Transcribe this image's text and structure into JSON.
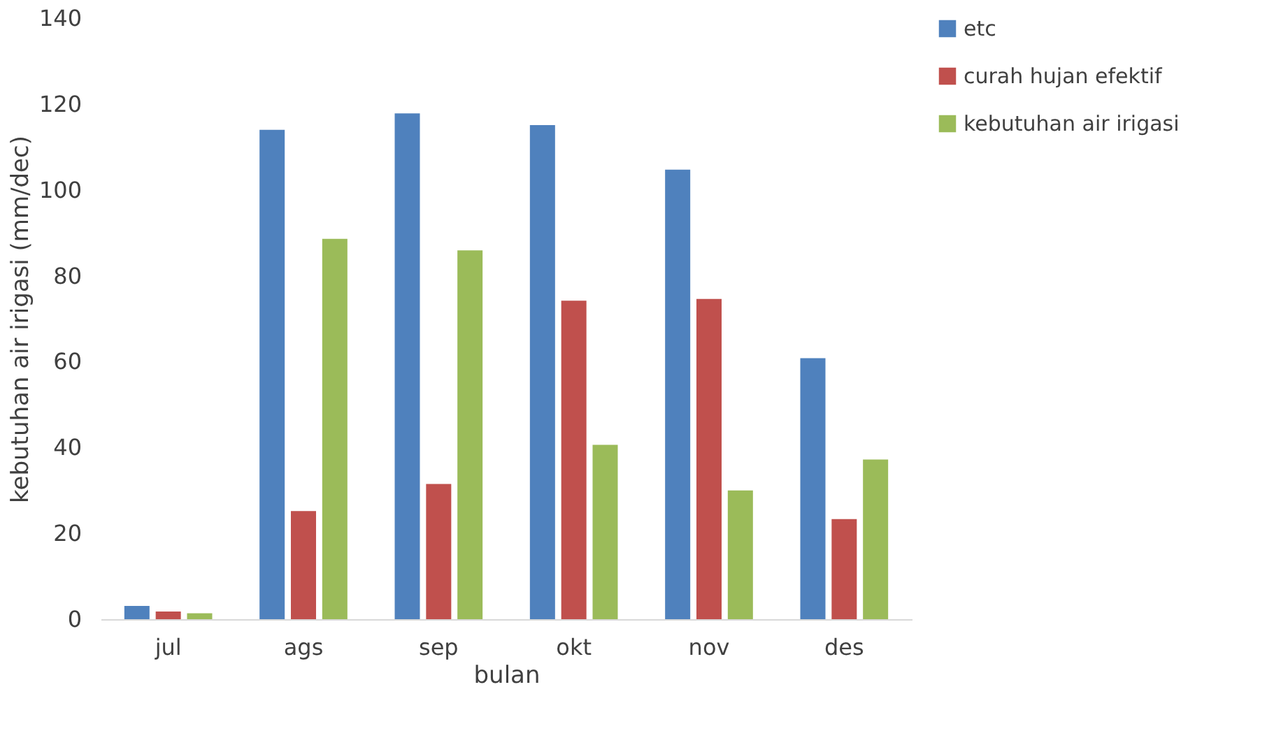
{
  "chart_data": {
    "type": "bar",
    "xlabel": "bulan",
    "ylabel": "kebutuhan air irigasi (mm/dec)",
    "categories": [
      "jul",
      "ags",
      "sep",
      "okt",
      "nov",
      "des"
    ],
    "series": [
      {
        "name": "etc",
        "color": "#4f81bd",
        "values": [
          3.1,
          114.0,
          117.8,
          115.1,
          104.7,
          60.8
        ]
      },
      {
        "name": "curah hujan efektif",
        "color": "#c0504d",
        "values": [
          1.8,
          25.2,
          31.5,
          74.2,
          74.6,
          23.3
        ]
      },
      {
        "name": "kebutuhan air irigasi",
        "color": "#9bbb59",
        "values": [
          1.4,
          88.6,
          85.9,
          40.6,
          30.0,
          37.2
        ]
      }
    ],
    "ylim": [
      0,
      140
    ],
    "yticks": [
      0,
      20,
      40,
      60,
      80,
      100,
      120,
      140
    ],
    "grid": false,
    "legend": "right"
  }
}
